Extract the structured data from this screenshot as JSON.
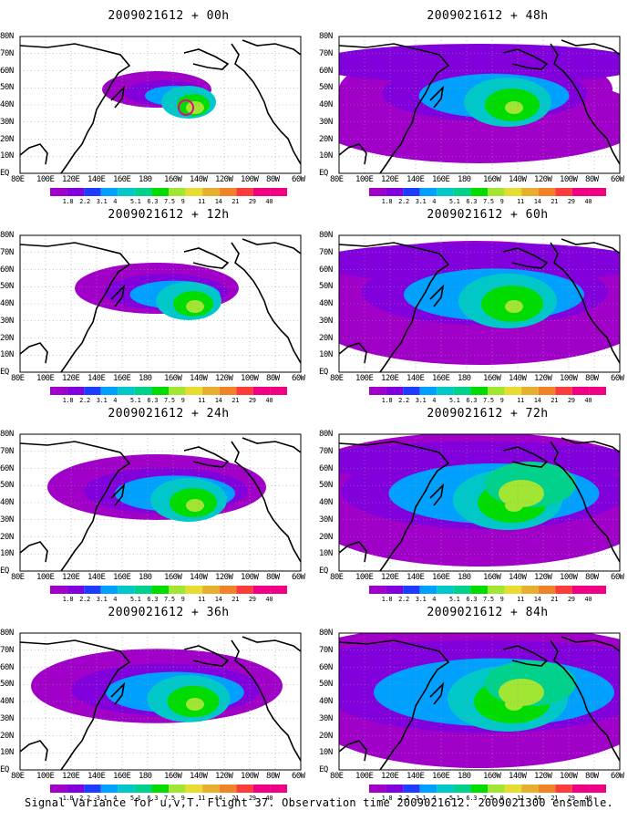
{
  "panels": [
    {
      "title": "2009021612 + 00h",
      "level": 0
    },
    {
      "title": "2009021612 + 48h",
      "level": 3
    },
    {
      "title": "2009021612 + 12h",
      "level": 1
    },
    {
      "title": "2009021612 + 60h",
      "level": 4
    },
    {
      "title": "2009021612 + 24h",
      "level": 2
    },
    {
      "title": "2009021612 + 72h",
      "level": 5
    },
    {
      "title": "2009021612 + 36h",
      "level": 2.6
    },
    {
      "title": "2009021612 + 84h",
      "level": 6
    }
  ],
  "lat_labels": [
    "80N",
    "70N",
    "60N",
    "50N",
    "40N",
    "30N",
    "20N",
    "10N",
    "EQ"
  ],
  "lon_labels": [
    "80E",
    "100E",
    "120E",
    "140E",
    "160E",
    "180",
    "160W",
    "140W",
    "120W",
    "100W",
    "80W",
    "60W"
  ],
  "colorbar": {
    "labels": [
      "1.8",
      "2.2",
      "3.1",
      "4",
      "5.1",
      "6.3",
      "7.5",
      "9",
      "11",
      "14",
      "21",
      "29",
      "40"
    ],
    "colors": [
      "#a000c8",
      "#8200dc",
      "#1e3cff",
      "#00a0ff",
      "#00c8c8",
      "#00d28c",
      "#00dc00",
      "#a0e632",
      "#e6dc32",
      "#e6af2d",
      "#f08228",
      "#fa3c3c",
      "#f00082"
    ]
  },
  "footer": "Signal Variance for u,v,T. Flight 37. Observation time 2009021612. 2009021300 ensemble."
}
